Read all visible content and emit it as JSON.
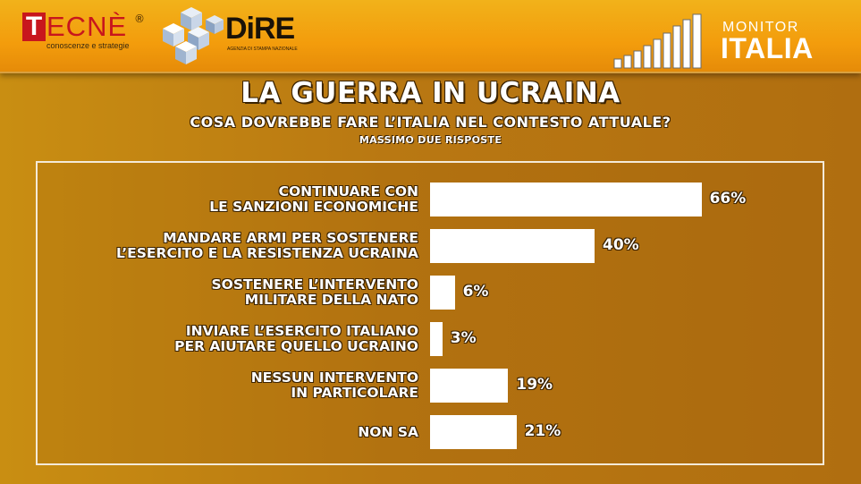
{
  "header": {
    "tecne_letter": "T",
    "tecne_rest": "ECNÈ",
    "tecne_reg": "®",
    "tecne_sub": "conoscenze e strategie",
    "dire_name": "DiRE",
    "dire_sub": "AGENZIA DI STAMPA NAZIONALE",
    "monitor_label": "MONITOR",
    "italia_label": "ITALIA"
  },
  "colors": {
    "header_orange": "#f39c0c",
    "background_brown": "#b97812",
    "bar_white": "#ffffff",
    "tecne_red": "#c8161d"
  },
  "chart_data": {
    "type": "bar",
    "orientation": "horizontal",
    "title": "LA GUERRA IN UCRAINA",
    "subtitle": "COSA DOVREBBE FARE L’ITALIA NEL CONTESTO ATTUALE?",
    "note": "MASSIMO DUE RISPOSTE",
    "categories": [
      [
        "CONTINUARE CON",
        "LE SANZIONI ECONOMICHE"
      ],
      [
        "MANDARE ARMI PER SOSTENERE",
        "L’ESERCITO E LA RESISTENZA UCRAINA"
      ],
      [
        "SOSTENERE L’INTERVENTO",
        "MILITARE DELLA NATO"
      ],
      [
        "INVIARE L’ESERCITO ITALIANO",
        "PER AIUTARE QUELLO UCRAINO"
      ],
      [
        "NESSUN INTERVENTO",
        "IN PARTICOLARE"
      ],
      [
        "NON SA"
      ]
    ],
    "values": [
      66,
      40,
      6,
      3,
      19,
      21
    ],
    "value_labels": [
      "66%",
      "40%",
      "6%",
      "3%",
      "19%",
      "21%"
    ],
    "unit": "%",
    "xlim": [
      0,
      100
    ],
    "grid": false
  }
}
